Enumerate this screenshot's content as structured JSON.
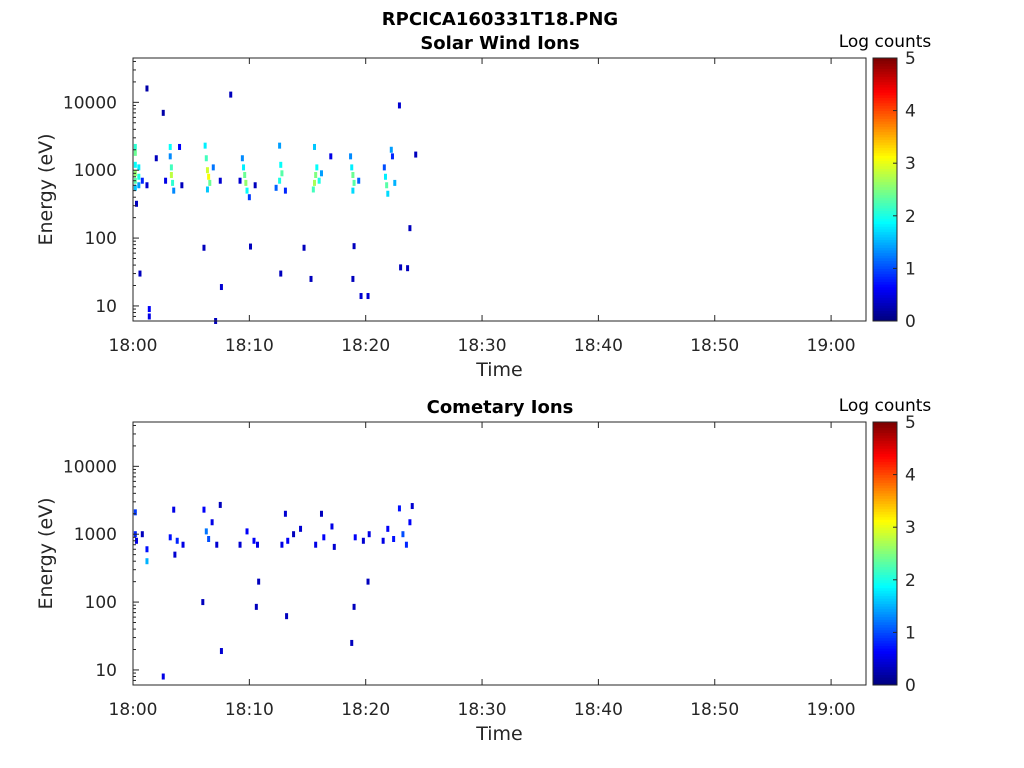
{
  "figure": {
    "title": "RPCICA160331T18.PNG"
  },
  "chart_data": [
    {
      "type": "heatmap",
      "title": "Solar Wind Ions",
      "xlabel": "Time",
      "ylabel": "Energy (eV)",
      "x_ticks": [
        "18:00",
        "18:10",
        "18:20",
        "18:30",
        "18:40",
        "18:50",
        "19:00"
      ],
      "x_range_minutes": [
        0,
        63
      ],
      "y_scale": "log",
      "y_range": [
        6,
        45000
      ],
      "y_ticks": [
        "10",
        "100",
        "1000",
        "10000"
      ],
      "colorbar": {
        "label": "Log counts",
        "ticks": [
          "0",
          "1",
          "2",
          "3",
          "4",
          "5"
        ],
        "range": [
          0,
          5
        ],
        "colormap": "jet"
      },
      "cells": [
        {
          "t": 0.2,
          "e": 2200,
          "v": 2.1
        },
        {
          "t": 0.2,
          "e": 1800,
          "v": 2.4
        },
        {
          "t": 0.2,
          "e": 1200,
          "v": 1.9
        },
        {
          "t": 0.2,
          "e": 900,
          "v": 2.6
        },
        {
          "t": 0.2,
          "e": 700,
          "v": 2.3
        },
        {
          "t": 0.2,
          "e": 550,
          "v": 1.6
        },
        {
          "t": 0.5,
          "e": 1100,
          "v": 1.8
        },
        {
          "t": 0.5,
          "e": 800,
          "v": 2.0
        },
        {
          "t": 0.5,
          "e": 600,
          "v": 1.4
        },
        {
          "t": 0.8,
          "e": 700,
          "v": 0.8
        },
        {
          "t": 1.2,
          "e": 600,
          "v": 0.4
        },
        {
          "t": 0.3,
          "e": 320,
          "v": 0.3
        },
        {
          "t": 0.6,
          "e": 30,
          "v": 0.3
        },
        {
          "t": 1.4,
          "e": 9,
          "v": 0.6
        },
        {
          "t": 1.4,
          "e": 7,
          "v": 0.5
        },
        {
          "t": 1.2,
          "e": 16000,
          "v": 0.2
        },
        {
          "t": 2.6,
          "e": 7000,
          "v": 0.2
        },
        {
          "t": 2.0,
          "e": 1500,
          "v": 0.3
        },
        {
          "t": 3.2,
          "e": 2200,
          "v": 1.9
        },
        {
          "t": 3.2,
          "e": 1600,
          "v": 1.3
        },
        {
          "t": 3.3,
          "e": 1100,
          "v": 2.2
        },
        {
          "t": 3.3,
          "e": 850,
          "v": 2.8
        },
        {
          "t": 3.4,
          "e": 650,
          "v": 2.1
        },
        {
          "t": 3.5,
          "e": 500,
          "v": 1.3
        },
        {
          "t": 2.8,
          "e": 700,
          "v": 0.5
        },
        {
          "t": 4.0,
          "e": 2200,
          "v": 0.6
        },
        {
          "t": 4.2,
          "e": 600,
          "v": 0.3
        },
        {
          "t": 6.2,
          "e": 2300,
          "v": 1.8
        },
        {
          "t": 6.3,
          "e": 1500,
          "v": 2.2
        },
        {
          "t": 6.4,
          "e": 1000,
          "v": 2.9
        },
        {
          "t": 6.5,
          "e": 800,
          "v": 3.1
        },
        {
          "t": 6.6,
          "e": 650,
          "v": 2.4
        },
        {
          "t": 6.4,
          "e": 520,
          "v": 1.6
        },
        {
          "t": 6.9,
          "e": 1100,
          "v": 1.2
        },
        {
          "t": 7.5,
          "e": 700,
          "v": 0.4
        },
        {
          "t": 7.1,
          "e": 6,
          "v": 0.3
        },
        {
          "t": 7.6,
          "e": 19,
          "v": 0.4
        },
        {
          "t": 8.4,
          "e": 13000,
          "v": 0.3
        },
        {
          "t": 6.1,
          "e": 72,
          "v": 0.3
        },
        {
          "t": 9.4,
          "e": 1500,
          "v": 1.3
        },
        {
          "t": 9.5,
          "e": 1100,
          "v": 1.8
        },
        {
          "t": 9.6,
          "e": 850,
          "v": 2.4
        },
        {
          "t": 9.7,
          "e": 650,
          "v": 2.6
        },
        {
          "t": 9.8,
          "e": 500,
          "v": 1.9
        },
        {
          "t": 10.0,
          "e": 400,
          "v": 0.9
        },
        {
          "t": 9.2,
          "e": 700,
          "v": 0.4
        },
        {
          "t": 10.5,
          "e": 600,
          "v": 0.3
        },
        {
          "t": 10.1,
          "e": 75,
          "v": 0.3
        },
        {
          "t": 12.6,
          "e": 2300,
          "v": 1.4
        },
        {
          "t": 12.7,
          "e": 1200,
          "v": 1.9
        },
        {
          "t": 12.8,
          "e": 900,
          "v": 2.3
        },
        {
          "t": 12.6,
          "e": 700,
          "v": 2.0
        },
        {
          "t": 12.3,
          "e": 550,
          "v": 1.1
        },
        {
          "t": 13.1,
          "e": 500,
          "v": 0.8
        },
        {
          "t": 12.7,
          "e": 30,
          "v": 0.3
        },
        {
          "t": 14.7,
          "e": 72,
          "v": 0.3
        },
        {
          "t": 15.3,
          "e": 25,
          "v": 0.3
        },
        {
          "t": 15.6,
          "e": 2200,
          "v": 1.6
        },
        {
          "t": 15.8,
          "e": 1100,
          "v": 1.9
        },
        {
          "t": 15.7,
          "e": 850,
          "v": 2.5
        },
        {
          "t": 15.6,
          "e": 650,
          "v": 2.7
        },
        {
          "t": 15.5,
          "e": 520,
          "v": 2.2
        },
        {
          "t": 16.0,
          "e": 700,
          "v": 2.0
        },
        {
          "t": 16.2,
          "e": 900,
          "v": 1.4
        },
        {
          "t": 17.0,
          "e": 1600,
          "v": 0.5
        },
        {
          "t": 18.9,
          "e": 25,
          "v": 0.3
        },
        {
          "t": 18.7,
          "e": 1600,
          "v": 1.3
        },
        {
          "t": 18.8,
          "e": 1100,
          "v": 1.8
        },
        {
          "t": 18.9,
          "e": 850,
          "v": 2.4
        },
        {
          "t": 19.0,
          "e": 650,
          "v": 2.3
        },
        {
          "t": 18.9,
          "e": 500,
          "v": 1.7
        },
        {
          "t": 19.4,
          "e": 700,
          "v": 1.1
        },
        {
          "t": 19.6,
          "e": 14,
          "v": 0.4
        },
        {
          "t": 20.2,
          "e": 14,
          "v": 0.4
        },
        {
          "t": 19.0,
          "e": 76,
          "v": 0.3
        },
        {
          "t": 21.6,
          "e": 1100,
          "v": 1.0
        },
        {
          "t": 21.7,
          "e": 800,
          "v": 1.8
        },
        {
          "t": 21.8,
          "e": 600,
          "v": 2.3
        },
        {
          "t": 21.9,
          "e": 450,
          "v": 1.7
        },
        {
          "t": 22.2,
          "e": 2000,
          "v": 1.4
        },
        {
          "t": 22.3,
          "e": 1600,
          "v": 0.8
        },
        {
          "t": 22.5,
          "e": 650,
          "v": 1.5
        },
        {
          "t": 22.9,
          "e": 9000,
          "v": 0.4
        },
        {
          "t": 23.0,
          "e": 37,
          "v": 0.3
        },
        {
          "t": 23.6,
          "e": 36,
          "v": 0.3
        },
        {
          "t": 23.8,
          "e": 140,
          "v": 0.3
        },
        {
          "t": 24.3,
          "e": 1700,
          "v": 0.3
        }
      ]
    },
    {
      "type": "heatmap",
      "title": "Cometary Ions",
      "xlabel": "Time",
      "ylabel": "Energy (eV)",
      "x_ticks": [
        "18:00",
        "18:10",
        "18:20",
        "18:30",
        "18:40",
        "18:50",
        "19:00"
      ],
      "x_range_minutes": [
        0,
        63
      ],
      "y_scale": "log",
      "y_range": [
        6,
        45000
      ],
      "y_ticks": [
        "10",
        "100",
        "1000",
        "10000"
      ],
      "colorbar": {
        "label": "Log counts",
        "ticks": [
          "0",
          "1",
          "2",
          "3",
          "4",
          "5"
        ],
        "range": [
          0,
          5
        ],
        "colormap": "jet"
      },
      "cells": [
        {
          "t": 0.2,
          "e": 2100,
          "v": 0.9
        },
        {
          "t": 0.2,
          "e": 1000,
          "v": 0.8
        },
        {
          "t": 0.3,
          "e": 800,
          "v": 0.5
        },
        {
          "t": 0.8,
          "e": 1000,
          "v": 0.3
        },
        {
          "t": 1.2,
          "e": 600,
          "v": 0.7
        },
        {
          "t": 1.2,
          "e": 400,
          "v": 1.5
        },
        {
          "t": 2.6,
          "e": 8,
          "v": 0.5
        },
        {
          "t": 3.2,
          "e": 900,
          "v": 0.7
        },
        {
          "t": 3.5,
          "e": 2300,
          "v": 0.5
        },
        {
          "t": 3.8,
          "e": 800,
          "v": 0.8
        },
        {
          "t": 4.3,
          "e": 700,
          "v": 0.5
        },
        {
          "t": 3.6,
          "e": 500,
          "v": 0.4
        },
        {
          "t": 6.1,
          "e": 2300,
          "v": 0.6
        },
        {
          "t": 6.3,
          "e": 1100,
          "v": 1.2
        },
        {
          "t": 6.5,
          "e": 850,
          "v": 1.0
        },
        {
          "t": 6.8,
          "e": 1500,
          "v": 0.5
        },
        {
          "t": 7.2,
          "e": 700,
          "v": 0.4
        },
        {
          "t": 7.5,
          "e": 2700,
          "v": 0.3
        },
        {
          "t": 6.0,
          "e": 100,
          "v": 0.3
        },
        {
          "t": 7.6,
          "e": 19,
          "v": 0.4
        },
        {
          "t": 9.2,
          "e": 700,
          "v": 0.4
        },
        {
          "t": 9.8,
          "e": 1100,
          "v": 0.6
        },
        {
          "t": 10.4,
          "e": 800,
          "v": 0.6
        },
        {
          "t": 10.7,
          "e": 700,
          "v": 0.5
        },
        {
          "t": 10.8,
          "e": 200,
          "v": 0.3
        },
        {
          "t": 10.6,
          "e": 85,
          "v": 0.3
        },
        {
          "t": 12.8,
          "e": 700,
          "v": 0.5
        },
        {
          "t": 13.1,
          "e": 2000,
          "v": 0.4
        },
        {
          "t": 13.3,
          "e": 800,
          "v": 0.6
        },
        {
          "t": 13.8,
          "e": 1000,
          "v": 0.3
        },
        {
          "t": 14.4,
          "e": 1200,
          "v": 0.4
        },
        {
          "t": 13.2,
          "e": 62,
          "v": 0.3
        },
        {
          "t": 15.7,
          "e": 700,
          "v": 0.5
        },
        {
          "t": 16.2,
          "e": 2000,
          "v": 0.3
        },
        {
          "t": 16.4,
          "e": 900,
          "v": 0.6
        },
        {
          "t": 17.1,
          "e": 1300,
          "v": 0.5
        },
        {
          "t": 17.3,
          "e": 650,
          "v": 0.4
        },
        {
          "t": 18.8,
          "e": 25,
          "v": 0.3
        },
        {
          "t": 19.0,
          "e": 85,
          "v": 0.3
        },
        {
          "t": 19.1,
          "e": 900,
          "v": 0.6
        },
        {
          "t": 19.8,
          "e": 800,
          "v": 0.4
        },
        {
          "t": 20.3,
          "e": 1000,
          "v": 0.5
        },
        {
          "t": 20.2,
          "e": 200,
          "v": 0.3
        },
        {
          "t": 21.5,
          "e": 800,
          "v": 0.5
        },
        {
          "t": 21.9,
          "e": 1200,
          "v": 0.6
        },
        {
          "t": 22.4,
          "e": 850,
          "v": 0.7
        },
        {
          "t": 22.9,
          "e": 2400,
          "v": 0.7
        },
        {
          "t": 23.2,
          "e": 1000,
          "v": 1.0
        },
        {
          "t": 23.5,
          "e": 700,
          "v": 0.8
        },
        {
          "t": 23.8,
          "e": 1500,
          "v": 0.6
        },
        {
          "t": 24.0,
          "e": 2600,
          "v": 0.4
        }
      ]
    }
  ]
}
